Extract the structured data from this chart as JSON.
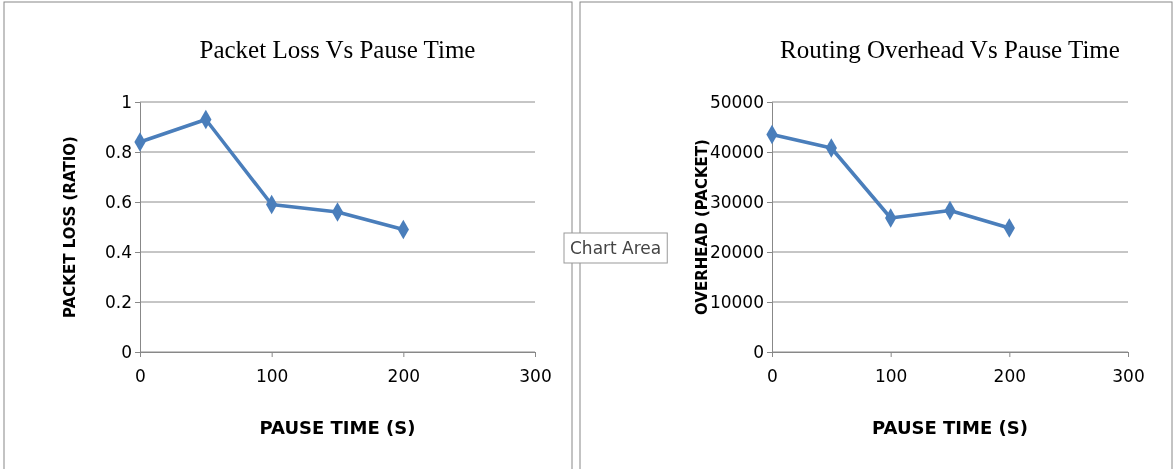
{
  "chart_data": [
    {
      "type": "line",
      "title": "Packet Loss Vs Pause Time",
      "xlabel": "PAUSE TIME (S)",
      "ylabel": "PACKET LOSS (RATIO)",
      "x": [
        0,
        50,
        100,
        150,
        200
      ],
      "xlim": [
        0,
        300
      ],
      "xticks": [
        0,
        100,
        200,
        300
      ],
      "ylim": [
        0,
        1
      ],
      "yticks": [
        0,
        0.2,
        0.4,
        0.6,
        0.8,
        1
      ],
      "grid": "y",
      "marker": "diamond",
      "line_style": "solid",
      "series": [
        {
          "color": "#4a7ebb",
          "values": [
            0.84,
            0.93,
            0.59,
            0.56,
            0.49
          ]
        }
      ]
    },
    {
      "type": "line",
      "title": "Routing  Overhead Vs Pause Time",
      "xlabel": "PAUSE TIME (S)",
      "ylabel": "OVERHEAD (PACKET)",
      "x": [
        0,
        50,
        100,
        150,
        200
      ],
      "xlim": [
        0,
        300
      ],
      "xticks": [
        0,
        100,
        200,
        300
      ],
      "ylim": [
        0,
        50000
      ],
      "yticks": [
        0,
        10000,
        20000,
        30000,
        40000,
        50000
      ],
      "grid": "y",
      "marker": "diamond",
      "line_style": "solid",
      "annotations": [
        "Chart Area"
      ],
      "series": [
        {
          "color": "#4a7ebb",
          "values": [
            43500,
            40800,
            26800,
            28300,
            24800
          ]
        }
      ]
    }
  ]
}
